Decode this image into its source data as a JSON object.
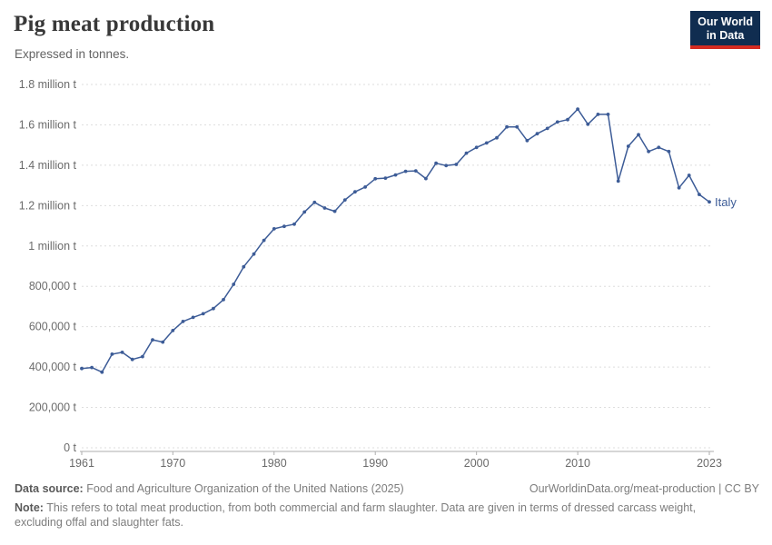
{
  "header": {
    "title": "Pig meat production",
    "subtitle": "Expressed in tonnes.",
    "logo": {
      "line1": "Our World",
      "line2": "in Data",
      "bg_color": "#102d50",
      "accent_color": "#d42b21"
    }
  },
  "chart_data": {
    "type": "line",
    "title": "Pig meat production",
    "unit": "tonnes",
    "grid": "horizontal-dashed",
    "legend_position": "end-of-line-label",
    "ylim": [
      0,
      1800000
    ],
    "yticks": [
      {
        "value": 0,
        "label": "0 t"
      },
      {
        "value": 200000,
        "label": "200,000 t"
      },
      {
        "value": 400000,
        "label": "400,000 t"
      },
      {
        "value": 600000,
        "label": "600,000 t"
      },
      {
        "value": 800000,
        "label": "800,000 t"
      },
      {
        "value": 1000000,
        "label": "1 million t"
      },
      {
        "value": 1200000,
        "label": "1.2 million t"
      },
      {
        "value": 1400000,
        "label": "1.4 million t"
      },
      {
        "value": 1600000,
        "label": "1.6 million t"
      },
      {
        "value": 1800000,
        "label": "1.8 million t"
      }
    ],
    "xticks": [
      1961,
      1970,
      1980,
      1990,
      2000,
      2010,
      2023
    ],
    "x": [
      1961,
      1962,
      1963,
      1964,
      1965,
      1966,
      1967,
      1968,
      1969,
      1970,
      1971,
      1972,
      1973,
      1974,
      1975,
      1976,
      1977,
      1978,
      1979,
      1980,
      1981,
      1982,
      1983,
      1984,
      1985,
      1986,
      1987,
      1988,
      1989,
      1990,
      1991,
      1992,
      1993,
      1994,
      1995,
      1996,
      1997,
      1998,
      1999,
      2000,
      2001,
      2002,
      2003,
      2004,
      2005,
      2006,
      2007,
      2008,
      2009,
      2010,
      2011,
      2012,
      2013,
      2014,
      2015,
      2016,
      2017,
      2018,
      2019,
      2020,
      2021,
      2022,
      2023
    ],
    "series": [
      {
        "name": "Italy",
        "color": "#3d5c97",
        "values": [
          393000,
          398000,
          375000,
          464000,
          473000,
          438000,
          452000,
          535000,
          524000,
          581000,
          626000,
          646000,
          664000,
          690000,
          734000,
          810000,
          897000,
          960000,
          1028000,
          1085000,
          1097000,
          1108000,
          1168000,
          1216000,
          1188000,
          1172000,
          1228000,
          1268000,
          1292000,
          1333000,
          1336000,
          1352000,
          1370000,
          1372000,
          1334000,
          1410000,
          1398000,
          1404000,
          1460000,
          1488000,
          1510000,
          1536000,
          1590000,
          1590000,
          1522000,
          1556000,
          1582000,
          1614000,
          1626000,
          1678000,
          1603000,
          1652000,
          1652000,
          1321000,
          1494000,
          1551000,
          1468000,
          1488000,
          1468000,
          1288000,
          1350000,
          1255000,
          1218000
        ]
      }
    ],
    "colors": {
      "gridline": "#dedede",
      "axis_line": "#aeaeae",
      "tick_label": "#6b6b6b"
    }
  },
  "footer": {
    "source_label": "Data source:",
    "source_text": " Food and Agriculture Organization of the United Nations (2025)",
    "attribution": "OurWorldinData.org/meat-production | CC BY",
    "note_label": "Note:",
    "note_text": " This refers to total meat production, from both commercial and farm slaughter. Data are given in terms of dressed carcass weight, excluding offal and slaughter fats."
  }
}
